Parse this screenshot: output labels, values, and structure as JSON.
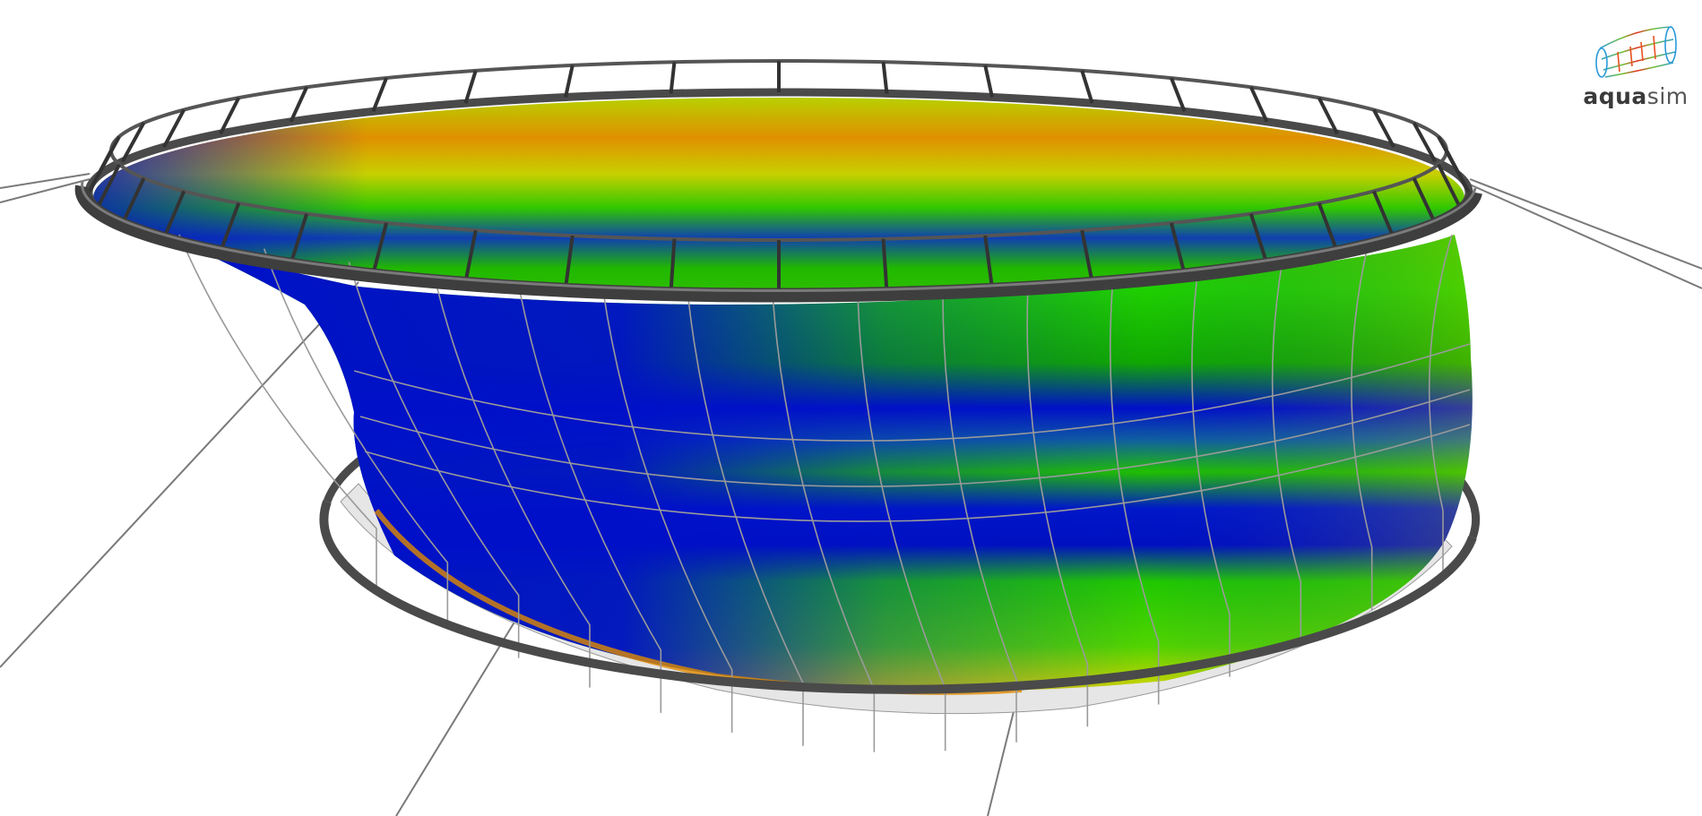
{
  "logo": {
    "text_bold": "aqua",
    "text_light": "sim"
  },
  "colors": {
    "background": "#ffffff",
    "ring": "#4a4a4a",
    "cable": "#7a7a7a",
    "net_blue": "#0010c8",
    "net_green": "#22cc00",
    "net_yellow": "#d8d000",
    "net_orange": "#e08a00"
  }
}
